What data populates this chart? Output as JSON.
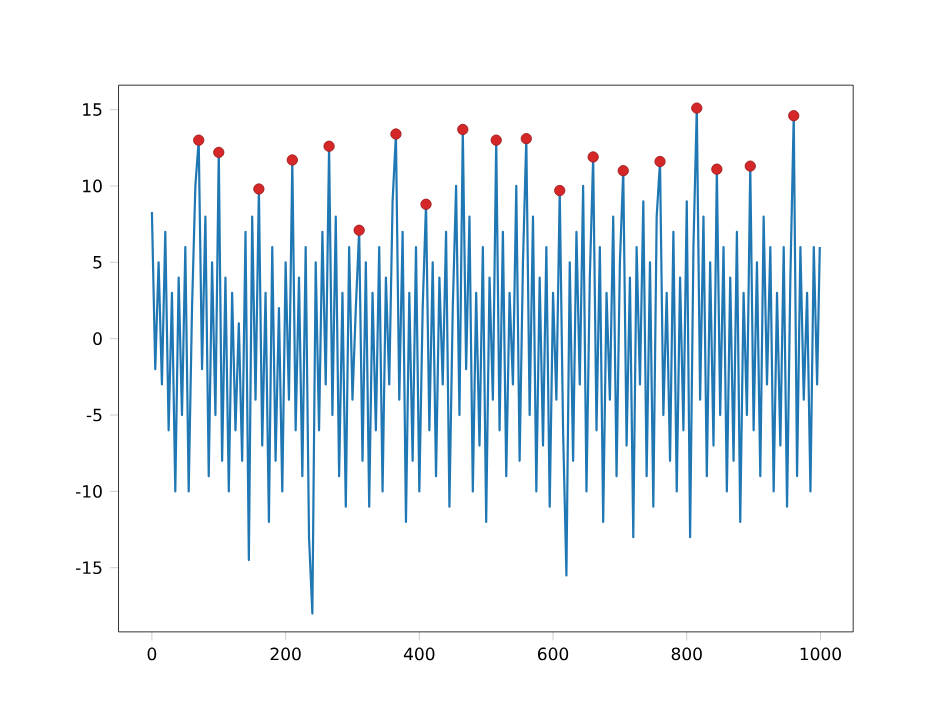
{
  "chart_data": {
    "type": "line",
    "xlim": [
      -49.95,
      1048.95
    ],
    "ylim": [
      -19.2,
      16.6
    ],
    "xticks": [
      0,
      200,
      400,
      600,
      800,
      1000
    ],
    "yticks": [
      -15,
      -10,
      -5,
      0,
      5,
      10,
      15
    ],
    "grid": false,
    "series": [
      {
        "color": "#1f77b4",
        "x": [
          0,
          5,
          10,
          15,
          20,
          25,
          30,
          35,
          40,
          45,
          50,
          55,
          60,
          65,
          70,
          75,
          80,
          85,
          90,
          95,
          100,
          105,
          110,
          115,
          120,
          125,
          130,
          135,
          140,
          145,
          150,
          155,
          160,
          165,
          170,
          175,
          180,
          185,
          190,
          195,
          200,
          205,
          210,
          215,
          220,
          225,
          230,
          235,
          240,
          245,
          250,
          255,
          260,
          265,
          270,
          275,
          280,
          285,
          290,
          295,
          300,
          305,
          310,
          315,
          320,
          325,
          330,
          335,
          340,
          345,
          350,
          355,
          360,
          365,
          370,
          375,
          380,
          385,
          390,
          395,
          400,
          405,
          410,
          415,
          420,
          425,
          430,
          435,
          440,
          445,
          450,
          455,
          460,
          465,
          470,
          475,
          480,
          485,
          490,
          495,
          500,
          505,
          510,
          515,
          520,
          525,
          530,
          535,
          540,
          545,
          550,
          555,
          560,
          565,
          570,
          575,
          580,
          585,
          590,
          595,
          600,
          605,
          610,
          615,
          620,
          625,
          630,
          635,
          640,
          645,
          650,
          655,
          660,
          665,
          670,
          675,
          680,
          685,
          690,
          695,
          700,
          705,
          710,
          715,
          720,
          725,
          730,
          735,
          740,
          745,
          750,
          755,
          760,
          765,
          770,
          775,
          780,
          785,
          790,
          795,
          800,
          805,
          810,
          815,
          820,
          825,
          830,
          835,
          840,
          845,
          850,
          855,
          860,
          865,
          870,
          875,
          880,
          885,
          890,
          895,
          900,
          905,
          910,
          915,
          920,
          925,
          930,
          935,
          940,
          945,
          950,
          955,
          960,
          965,
          970,
          975,
          980,
          985,
          990,
          995,
          999
        ],
        "values": [
          8.3,
          -2,
          5,
          -3,
          7,
          -6,
          3,
          -10,
          4,
          -5,
          6,
          -10,
          2,
          10,
          13.0,
          -2,
          8,
          -9,
          5,
          -5,
          12.2,
          -8,
          4,
          -10,
          3,
          -6,
          1,
          -8,
          7,
          -14.5,
          8,
          -4,
          9.8,
          -7,
          3,
          -12,
          6,
          -8,
          2,
          -10,
          5,
          -4,
          11.7,
          -6,
          4,
          -9,
          6,
          -13,
          -18,
          5,
          -6,
          7,
          -3,
          12.6,
          -5,
          8,
          -9,
          3,
          -11,
          6,
          -4,
          2,
          7.1,
          -8,
          5,
          -11,
          3,
          -6,
          6,
          -10,
          4,
          -3,
          9,
          13.4,
          -4,
          7,
          -12,
          3,
          -8,
          6,
          -10,
          2,
          8.8,
          -6,
          5,
          -9,
          4,
          -3,
          7,
          -11,
          2,
          10,
          -5,
          13.7,
          -2,
          8,
          -10,
          3,
          -7,
          6,
          -12,
          4,
          -4,
          13.0,
          -6,
          7,
          -9,
          3,
          -3,
          10,
          -8,
          5,
          13.1,
          -5,
          8,
          -10,
          4,
          -7,
          6,
          -11,
          3,
          -4,
          9.7,
          -6,
          -15.5,
          5,
          -8,
          7,
          -3,
          10,
          -10,
          4,
          11.9,
          -6,
          6,
          -12,
          3,
          -4,
          8,
          -9,
          5,
          11.0,
          -7,
          4,
          -13,
          6,
          -3,
          9,
          -9,
          5,
          -11,
          8,
          11.6,
          -5,
          3,
          -8,
          7,
          -10,
          4,
          -6,
          9,
          -13,
          6,
          15.1,
          -4,
          8,
          -9,
          5,
          -7,
          11.1,
          -5,
          6,
          -10,
          4,
          -8,
          7,
          -12,
          3,
          -5,
          11.3,
          -6,
          5,
          -9,
          8,
          -3,
          6,
          -10,
          3,
          -7,
          6,
          -11,
          4,
          14.6,
          -9,
          6,
          -4,
          3,
          -10,
          6,
          -3,
          6
        ]
      },
      {
        "type": "scatter",
        "color": "#d62728",
        "marker": "circle",
        "x": [
          70,
          100,
          160,
          210,
          265,
          310,
          365,
          410,
          465,
          515,
          560,
          610,
          660,
          705,
          760,
          815,
          845,
          895,
          960
        ],
        "values": [
          13.0,
          12.2,
          9.8,
          11.7,
          12.6,
          7.1,
          13.4,
          8.8,
          13.7,
          13.0,
          13.1,
          9.7,
          11.9,
          11.0,
          11.6,
          15.1,
          11.1,
          11.3,
          14.6
        ]
      }
    ]
  }
}
